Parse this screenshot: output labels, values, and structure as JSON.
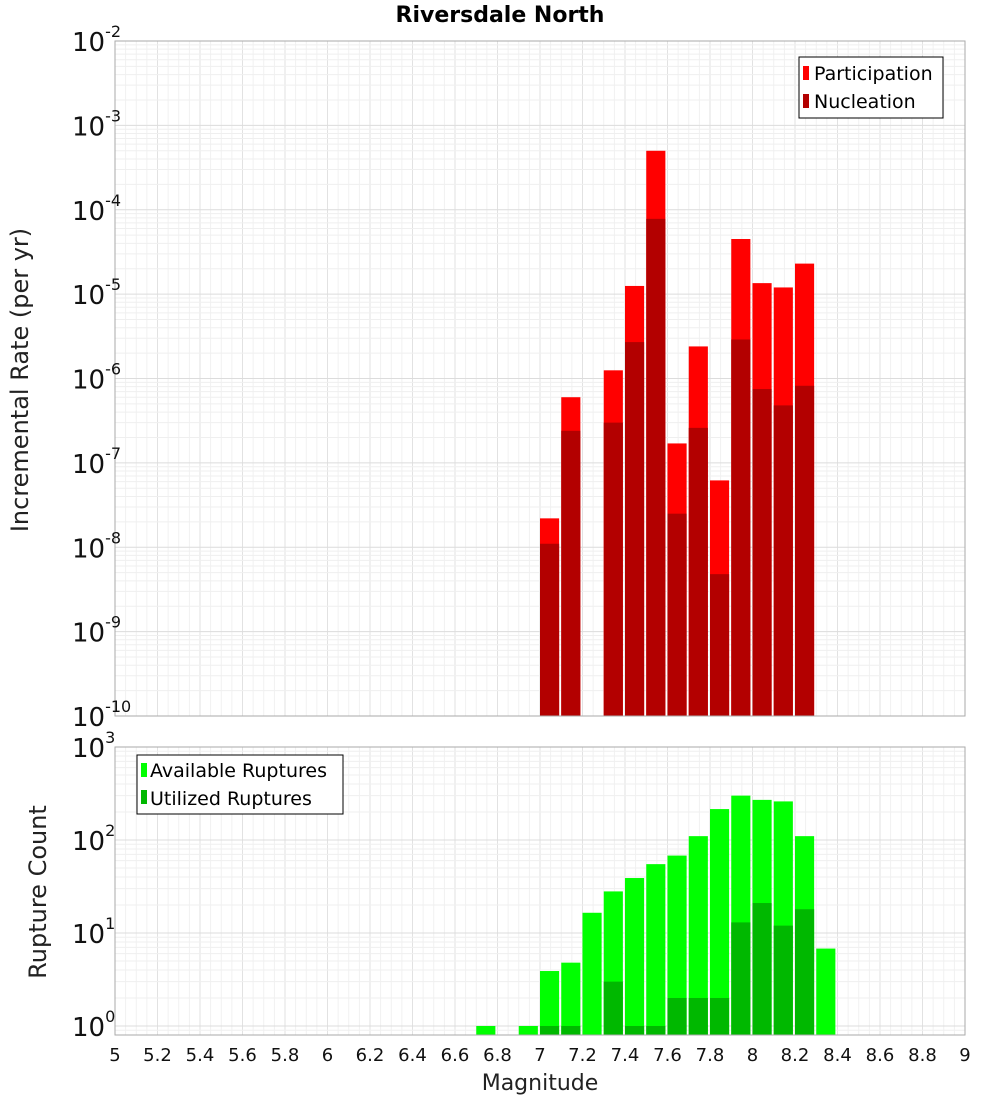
{
  "chart_data": [
    {
      "type": "bar",
      "title": "Riversdale North",
      "xlabel": "",
      "ylabel": "Incremental Rate (per yr)",
      "xlim": [
        5,
        9
      ],
      "ylim": [
        1e-10,
        0.01
      ],
      "yscale": "log",
      "y_tick_exponents": [
        "-2",
        "-3",
        "-4",
        "-5",
        "-6",
        "-7",
        "-8",
        "-9",
        "-10"
      ],
      "grid": true,
      "legend_position": "top-right",
      "x": [
        7.0,
        7.1,
        7.3,
        7.4,
        7.5,
        7.6,
        7.7,
        7.8,
        7.9,
        8.0,
        8.1,
        8.2
      ],
      "series": [
        {
          "name": "Participation",
          "color": "#ff0000",
          "values": [
            2.2e-08,
            6e-07,
            1.25e-06,
            1.25e-05,
            0.0005,
            1.7e-07,
            2.4e-06,
            6.2e-08,
            4.5e-05,
            1.35e-05,
            1.2e-05,
            2.3e-05
          ]
        },
        {
          "name": "Nucleation",
          "color": "#b30000",
          "values": [
            1.1e-08,
            2.4e-07,
            3e-07,
            2.7e-06,
            7.8e-05,
            2.5e-08,
            2.6e-07,
            4.8e-09,
            2.9e-06,
            7.5e-07,
            4.8e-07,
            8.2e-07
          ]
        }
      ]
    },
    {
      "type": "bar",
      "xlabel": "Magnitude",
      "ylabel": "Rupture Count",
      "xlim": [
        5,
        9
      ],
      "ylim": [
        0.8,
        1000
      ],
      "yscale": "log",
      "y_tick_exponents": [
        "3",
        "2",
        "1",
        "0"
      ],
      "x_tick_labels": [
        "5",
        "5.2",
        "5.4",
        "5.6",
        "5.8",
        "6",
        "6.2",
        "6.4",
        "6.6",
        "6.8",
        "7",
        "7.2",
        "7.4",
        "7.6",
        "7.8",
        "8",
        "8.2",
        "8.4",
        "8.6",
        "8.8",
        "9"
      ],
      "grid": true,
      "legend_position": "top-left",
      "x": [
        6.7,
        6.9,
        7.0,
        7.1,
        7.2,
        7.3,
        7.4,
        7.5,
        7.6,
        7.7,
        7.8,
        7.9,
        8.0,
        8.1,
        8.2,
        8.3
      ],
      "series": [
        {
          "name": "Available Ruptures",
          "color": "#00ff00",
          "values": [
            1,
            1,
            3.9,
            4.8,
            16.5,
            28,
            39,
            55,
            68,
            110,
            215,
            300,
            270,
            260,
            110,
            6.8
          ]
        },
        {
          "name": "Utilized Ruptures",
          "color": "#00b800",
          "values": [
            null,
            null,
            1,
            1,
            null,
            3,
            1,
            1,
            2,
            2,
            2,
            13,
            21,
            12,
            18,
            null
          ]
        }
      ]
    }
  ]
}
